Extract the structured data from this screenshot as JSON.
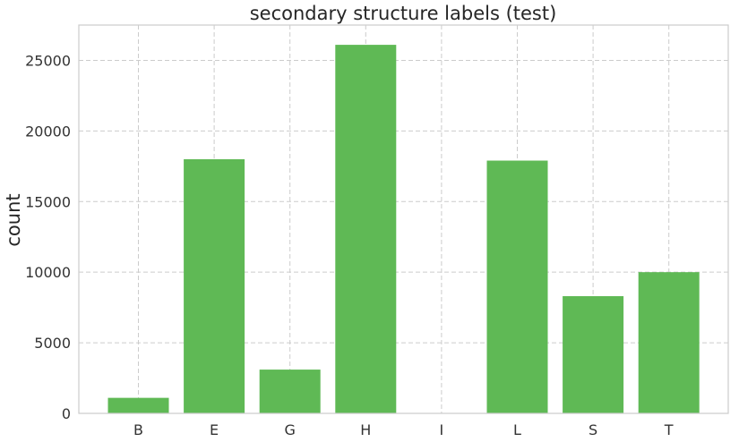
{
  "chart_data": {
    "type": "bar",
    "title": "secondary structure labels (test)",
    "xlabel": "",
    "ylabel": "count",
    "categories": [
      "B",
      "E",
      "G",
      "H",
      "I",
      "L",
      "S",
      "T"
    ],
    "values": [
      1100,
      18000,
      3100,
      26100,
      0,
      17900,
      8300,
      10000
    ],
    "ylim": [
      0,
      27500
    ],
    "yticks": [
      0,
      5000,
      10000,
      15000,
      20000,
      25000
    ],
    "grid": true,
    "bar_color": "#5fb955"
  }
}
